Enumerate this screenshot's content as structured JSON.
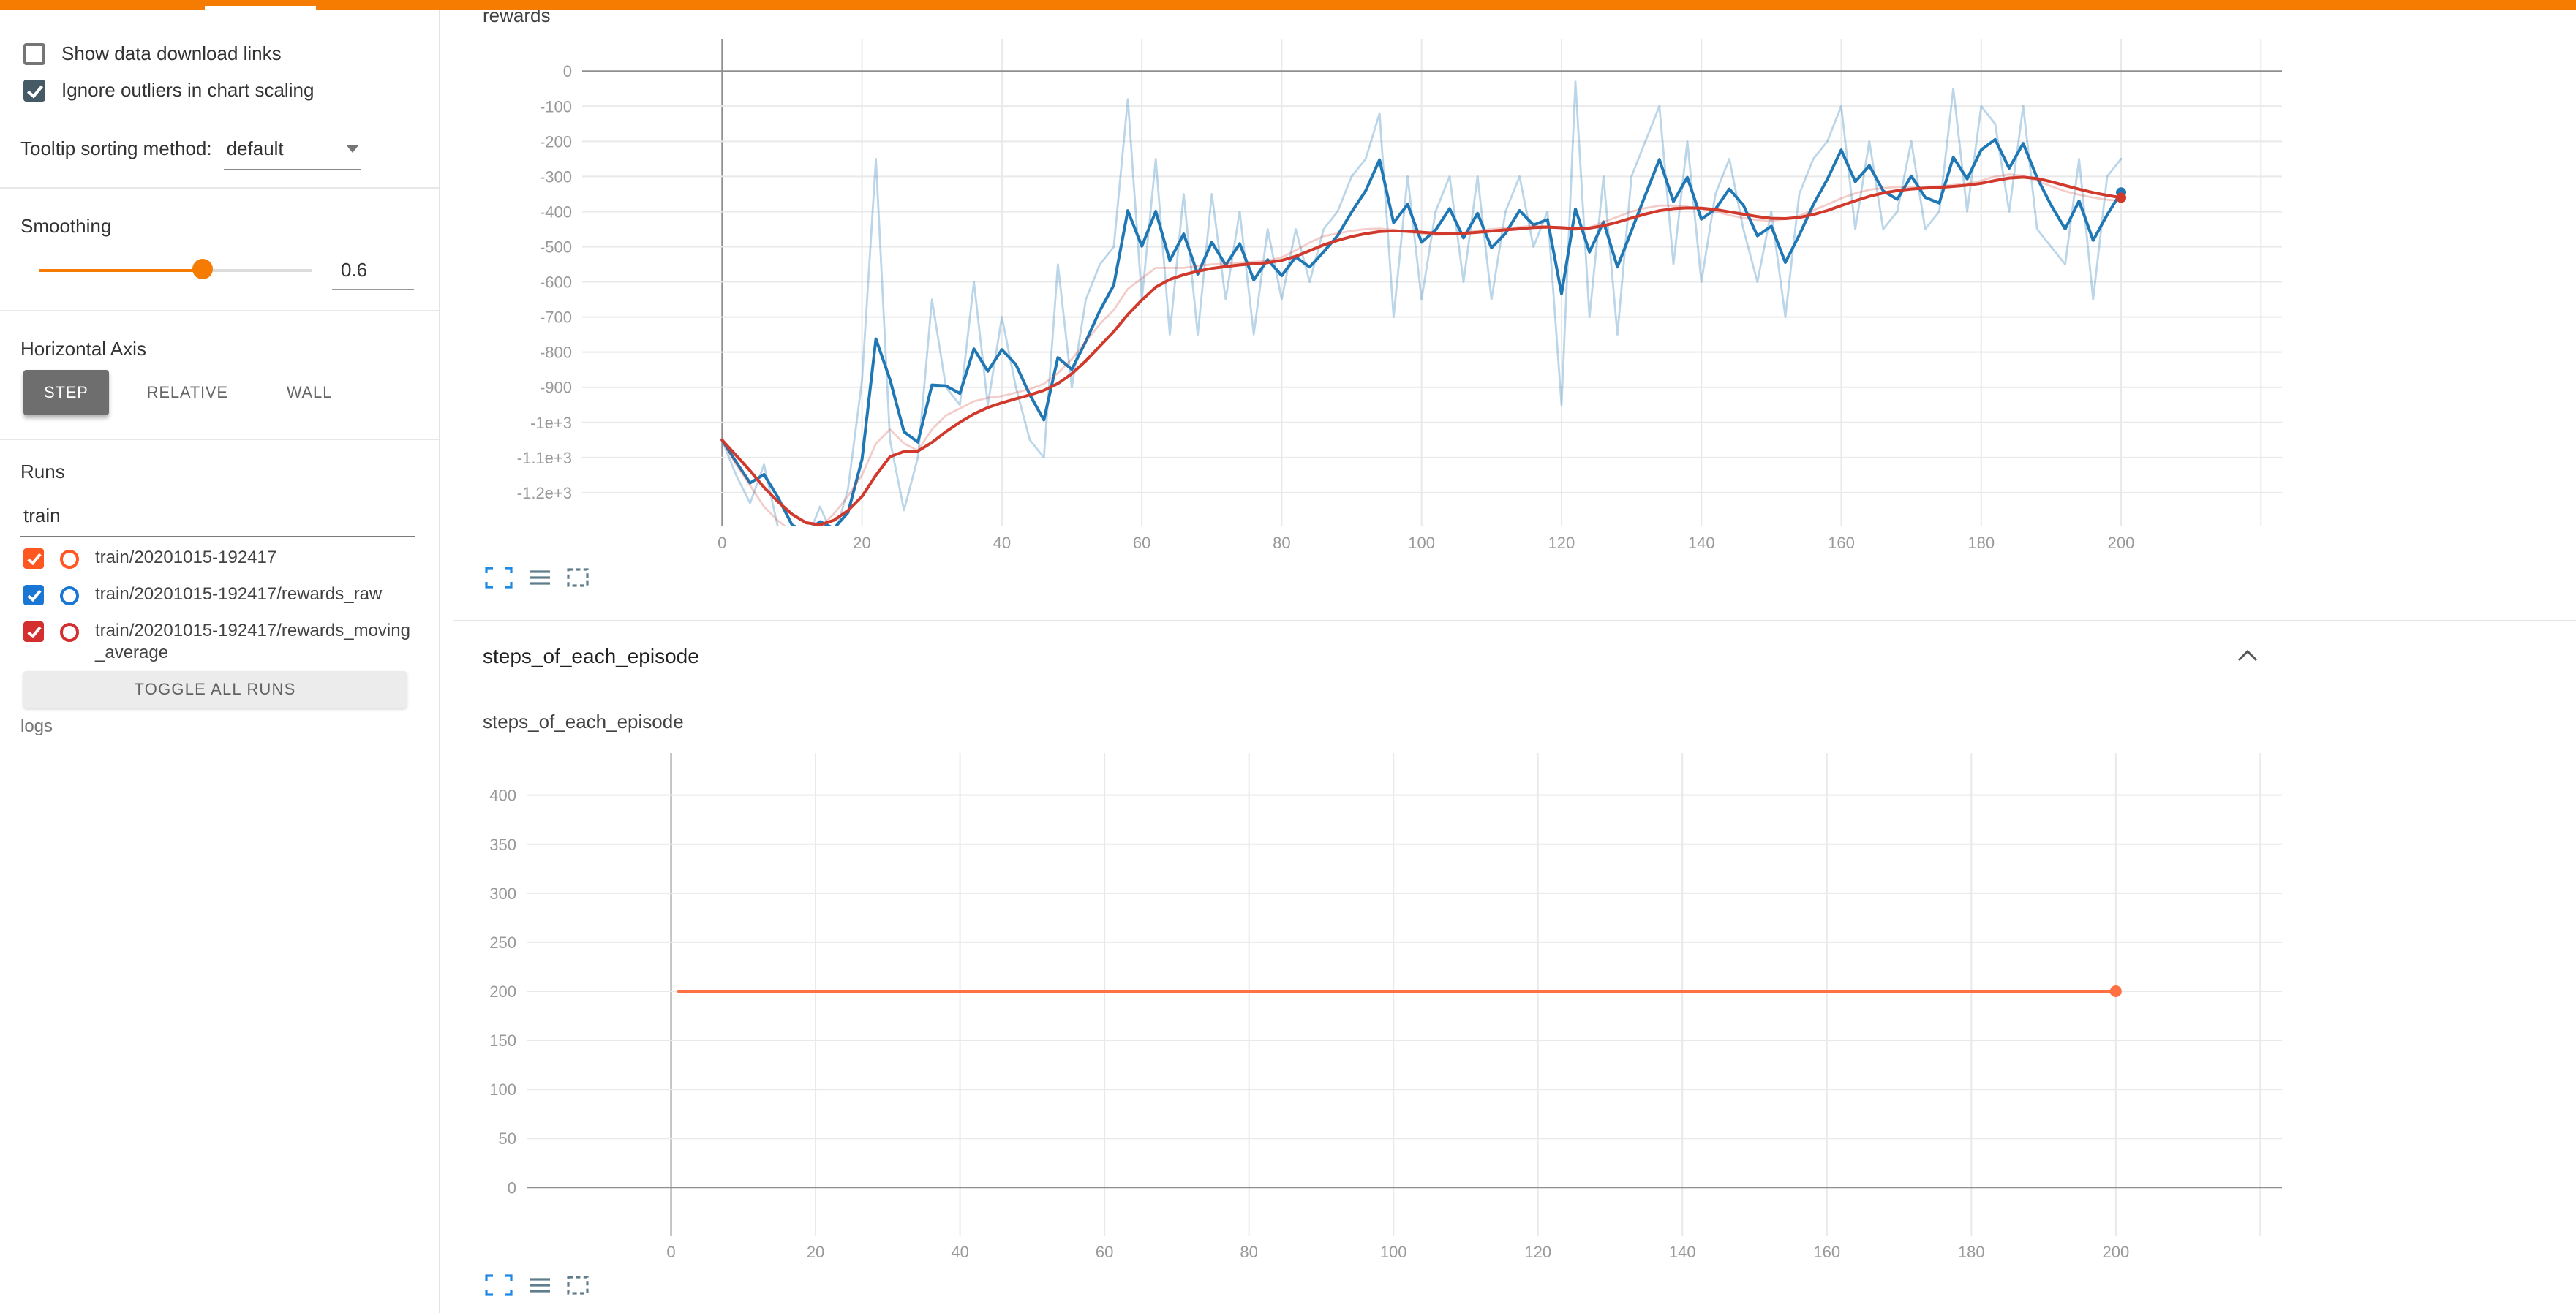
{
  "theme": {
    "topbar": "#f57c00",
    "accent": "#f57c00",
    "checkbox_dark": "#455a64",
    "icon_blue": "#1e88e5",
    "icon_slate": "#607d8b",
    "grid_light": "#e9e9e9",
    "grid_dark": "#8f8f8f",
    "tick_text": "#999999"
  },
  "sidebar": {
    "show_download": {
      "label": "Show data download links",
      "checked": false
    },
    "ignore_outliers": {
      "label": "Ignore outliers in chart scaling",
      "checked": true
    },
    "tooltip_sorting": {
      "label": "Tooltip sorting method:",
      "value": "default"
    },
    "smoothing": {
      "label": "Smoothing",
      "value": 0.6,
      "display": "0.6"
    },
    "horizontal_axis": {
      "label": "Horizontal Axis",
      "options": [
        "STEP",
        "RELATIVE",
        "WALL"
      ],
      "selected": "STEP"
    },
    "runs": {
      "label": "Runs",
      "search_value": "train",
      "items": [
        {
          "name": "train/20201015-192417",
          "checked": true,
          "color": "#ff5722"
        },
        {
          "name": "train/20201015-192417/rewards_raw",
          "checked": true,
          "color": "#1976d2"
        },
        {
          "name": "train/20201015-192417/rewards_moving_average",
          "checked": true,
          "color": "#d32f2f"
        }
      ],
      "toggle_all_label": "TOGGLE ALL RUNS",
      "footer": "logs"
    }
  },
  "main": {
    "rewards_title": "rewards",
    "steps_section_title": "steps_of_each_episode",
    "steps_chart_title": "steps_of_each_episode"
  },
  "chart_data": [
    {
      "id": "rewards",
      "type": "line",
      "title": "rewards",
      "x_domain": [
        -20,
        223
      ],
      "y_domain": [
        90,
        -1296
      ],
      "x_grid": [
        0,
        20,
        40,
        60,
        80,
        100,
        120,
        140,
        160,
        180,
        200,
        220
      ],
      "x_ticks": [
        {
          "v": 0,
          "label": "0"
        },
        {
          "v": 20,
          "label": "20"
        },
        {
          "v": 40,
          "label": "40"
        },
        {
          "v": 60,
          "label": "60"
        },
        {
          "v": 80,
          "label": "80"
        },
        {
          "v": 100,
          "label": "100"
        },
        {
          "v": 120,
          "label": "120"
        },
        {
          "v": 140,
          "label": "140"
        },
        {
          "v": 160,
          "label": "160"
        },
        {
          "v": 180,
          "label": "180"
        },
        {
          "v": 200,
          "label": "200"
        }
      ],
      "y_ticks": [
        {
          "v": 0,
          "label": "0"
        },
        {
          "v": -100,
          "label": "-100"
        },
        {
          "v": -200,
          "label": "-200"
        },
        {
          "v": -300,
          "label": "-300"
        },
        {
          "v": -400,
          "label": "-400"
        },
        {
          "v": -500,
          "label": "-500"
        },
        {
          "v": -600,
          "label": "-600"
        },
        {
          "v": -700,
          "label": "-700"
        },
        {
          "v": -800,
          "label": "-800"
        },
        {
          "v": -900,
          "label": "-900"
        },
        {
          "v": -1000,
          "label": "-1e+3"
        },
        {
          "v": -1100,
          "label": "-1.1e+3"
        },
        {
          "v": -1200,
          "label": "-1.2e+3"
        }
      ],
      "series": [
        {
          "name": "train/20201015-192417/rewards_raw",
          "color": "#1f77b4",
          "x_start": 0,
          "x_step": 2,
          "raw_opacity": 0.3,
          "smoothed": true,
          "end_dot": true,
          "values": [
            -1050,
            -1150,
            -1230,
            -1120,
            -1300,
            -1400,
            -1340,
            -1240,
            -1330,
            -1190,
            -880,
            -250,
            -1050,
            -1250,
            -1100,
            -650,
            -900,
            -950,
            -600,
            -950,
            -700,
            -900,
            -1050,
            -1100,
            -550,
            -900,
            -650,
            -550,
            -500,
            -80,
            -650,
            -250,
            -750,
            -350,
            -750,
            -350,
            -650,
            -400,
            -750,
            -450,
            -650,
            -450,
            -600,
            -450,
            -400,
            -300,
            -250,
            -120,
            -700,
            -300,
            -650,
            -400,
            -300,
            -600,
            -300,
            -650,
            -400,
            -300,
            -500,
            -400,
            -950,
            -30,
            -700,
            -300,
            -750,
            -300,
            -200,
            -100,
            -550,
            -200,
            -600,
            -350,
            -250,
            -450,
            -600,
            -400,
            -700,
            -350,
            -250,
            -200,
            -100,
            -450,
            -200,
            -450,
            -400,
            -200,
            -450,
            -400,
            -50,
            -400,
            -100,
            -150,
            -400,
            -100,
            -450,
            -500,
            -550,
            -250,
            -650,
            -300,
            -250
          ]
        },
        {
          "name": "train/20201015-192417/rewards_moving_average",
          "color": "#d0392b",
          "x_start": 0,
          "x_step": 2,
          "raw_opacity": 0.25,
          "smoothed": true,
          "end_dot": true,
          "values": [
            -1050,
            -1120,
            -1180,
            -1240,
            -1280,
            -1310,
            -1320,
            -1300,
            -1260,
            -1210,
            -1150,
            -1060,
            -1020,
            -1060,
            -1080,
            -1020,
            -980,
            -960,
            -940,
            -930,
            -925,
            -915,
            -905,
            -890,
            -860,
            -820,
            -770,
            -720,
            -680,
            -620,
            -590,
            -560,
            -560,
            -560,
            -555,
            -550,
            -548,
            -545,
            -543,
            -540,
            -530,
            -510,
            -488,
            -470,
            -462,
            -455,
            -450,
            -448,
            -452,
            -458,
            -462,
            -466,
            -465,
            -460,
            -455,
            -450,
            -447,
            -444,
            -440,
            -442,
            -448,
            -452,
            -445,
            -430,
            -415,
            -400,
            -390,
            -383,
            -383,
            -386,
            -392,
            -400,
            -410,
            -418,
            -424,
            -426,
            -421,
            -412,
            -396,
            -380,
            -362,
            -348,
            -338,
            -333,
            -330,
            -329,
            -329,
            -328,
            -324,
            -320,
            -312,
            -300,
            -294,
            -298,
            -312,
            -328,
            -342,
            -352,
            -360,
            -366,
            -370
          ]
        }
      ]
    },
    {
      "id": "steps",
      "type": "line",
      "title": "steps_of_each_episode",
      "x_domain": [
        -20,
        223
      ],
      "y_domain": [
        443,
        -49
      ],
      "x_grid": [
        0,
        20,
        40,
        60,
        80,
        100,
        120,
        140,
        160,
        180,
        200,
        220
      ],
      "x_ticks": [
        {
          "v": 0,
          "label": "0"
        },
        {
          "v": 20,
          "label": "20"
        },
        {
          "v": 40,
          "label": "40"
        },
        {
          "v": 60,
          "label": "60"
        },
        {
          "v": 80,
          "label": "80"
        },
        {
          "v": 100,
          "label": "100"
        },
        {
          "v": 120,
          "label": "120"
        },
        {
          "v": 140,
          "label": "140"
        },
        {
          "v": 160,
          "label": "160"
        },
        {
          "v": 180,
          "label": "180"
        },
        {
          "v": 200,
          "label": "200"
        }
      ],
      "y_ticks": [
        {
          "v": 400,
          "label": "400"
        },
        {
          "v": 350,
          "label": "350"
        },
        {
          "v": 300,
          "label": "300"
        },
        {
          "v": 250,
          "label": "250"
        },
        {
          "v": 200,
          "label": "200"
        },
        {
          "v": 150,
          "label": "150"
        },
        {
          "v": 100,
          "label": "100"
        },
        {
          "v": 50,
          "label": "50"
        },
        {
          "v": 0,
          "label": "0"
        }
      ],
      "series": [
        {
          "name": "train/20201015-192417",
          "color": "#ff7043",
          "x": [
            1,
            50,
            100,
            150,
            200
          ],
          "values": [
            200,
            200,
            200,
            200,
            200
          ],
          "smoothed": false,
          "end_dot": true,
          "dot_r": 4
        }
      ]
    }
  ]
}
